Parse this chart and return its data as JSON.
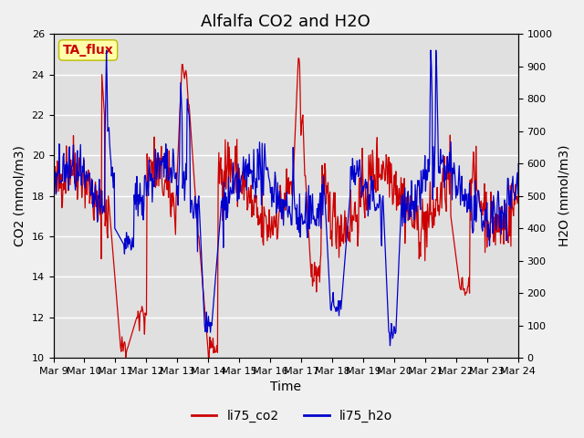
{
  "title": "Alfalfa CO2 and H2O",
  "xlabel": "Time",
  "ylabel_left": "CO2 (mmol/m3)",
  "ylabel_right": "H2O (mmol/m3)",
  "ylim_left": [
    10,
    26
  ],
  "ylim_right": [
    0,
    1000
  ],
  "yticks_left": [
    10,
    12,
    14,
    16,
    18,
    20,
    22,
    24,
    26
  ],
  "yticks_right": [
    0,
    100,
    200,
    300,
    400,
    500,
    600,
    700,
    800,
    900,
    1000
  ],
  "xtick_positions": [
    0,
    1,
    2,
    3,
    4,
    5,
    6,
    7,
    8,
    9,
    10,
    11,
    12,
    13,
    14,
    15
  ],
  "xtick_labels": [
    "Mar 9",
    "Mar 10",
    "Mar 11",
    "Mar 12",
    "Mar 13",
    "Mar 14",
    "Mar 15",
    "Mar 16",
    "Mar 17",
    "Mar 18",
    "Mar 19",
    "Mar 20",
    "Mar 21",
    "Mar 22",
    "Mar 23",
    "Mar 24"
  ],
  "color_co2": "#cc0000",
  "color_h2o": "#0000cc",
  "legend_label_co2": "li75_co2",
  "legend_label_h2o": "li75_h2o",
  "annotation_text": "TA_flux",
  "annotation_color": "#cc0000",
  "annotation_bg": "#ffffaa",
  "annotation_edge": "#bbbb00",
  "fig_bg_color": "#f0f0f0",
  "plot_bg_color": "#e0e0e0",
  "grid_color": "#ffffff",
  "title_fontsize": 13,
  "axis_fontsize": 10,
  "tick_fontsize": 8,
  "legend_fontsize": 10,
  "linewidth": 0.9
}
